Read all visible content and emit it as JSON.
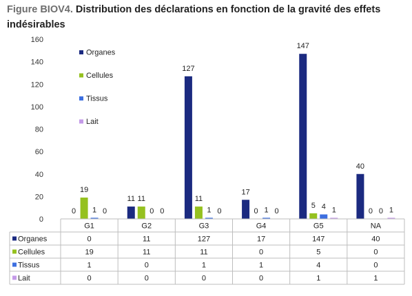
{
  "figure": {
    "prefix": "Figure BIOV4.",
    "title": "Distribution des déclarations en fonction de la gravité des effets indésirables"
  },
  "chart_data": {
    "type": "bar",
    "categories": [
      "G1",
      "G2",
      "G3",
      "G4",
      "G5",
      "NA"
    ],
    "series": [
      {
        "name": "Organes",
        "values": [
          0,
          11,
          127,
          17,
          147,
          40
        ],
        "color": "#1b2a80"
      },
      {
        "name": "Cellules",
        "values": [
          19,
          11,
          11,
          0,
          5,
          0
        ],
        "color": "#95c11f"
      },
      {
        "name": "Tissus",
        "values": [
          1,
          0,
          1,
          1,
          4,
          0
        ],
        "color": "#3d6fe0"
      },
      {
        "name": "Lait",
        "values": [
          0,
          0,
          0,
          0,
          1,
          1
        ],
        "color": "#c49ae8"
      }
    ],
    "ylim": [
      0,
      160
    ],
    "yticks": [
      0,
      20,
      40,
      60,
      80,
      100,
      120,
      140,
      160
    ],
    "grid": false,
    "legend": "top-left, inside plot",
    "data_table": true
  }
}
